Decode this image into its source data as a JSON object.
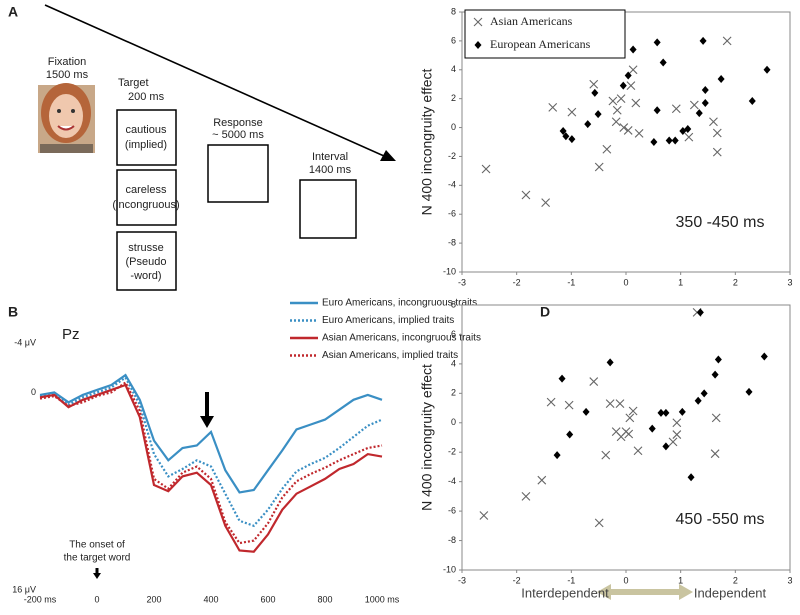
{
  "diagram": {
    "panel": "A",
    "fixation": [
      "Fixation",
      "1500 ms"
    ],
    "target": [
      "Target",
      "200 ms"
    ],
    "target_boxes": [
      [
        "cautious",
        "(implied)"
      ],
      [
        "careless",
        "(incongruous)"
      ],
      [
        "strusse",
        "(Pseudo",
        "-word)"
      ]
    ],
    "response": [
      "Response",
      "~ 5000 ms"
    ],
    "interval": [
      "Interval",
      "1400 ms"
    ]
  },
  "chart_data": [
    {
      "type": "line",
      "panel": "B",
      "title": "Pz",
      "y_inverted": true,
      "annotation_lines": [
        "The onset of",
        "the target word"
      ],
      "x": [
        -200,
        -150,
        -100,
        -50,
        0,
        50,
        100,
        150,
        200,
        250,
        300,
        350,
        400,
        450,
        500,
        550,
        600,
        650,
        700,
        750,
        800,
        850,
        900,
        950,
        1000
      ],
      "xlim": [
        -200,
        1000
      ],
      "xticks": [
        {
          "value": -200,
          "label": "-200 ms"
        },
        0,
        200,
        400,
        600,
        800,
        {
          "value": 1000,
          "label": "1000 ms"
        }
      ],
      "ylim": [
        -4,
        16
      ],
      "yticks": [
        {
          "value": -4,
          "label": "-4 μV"
        },
        0,
        {
          "value": 16,
          "label": "16 μV"
        }
      ],
      "series": [
        {
          "name": "Euro Americans, incongruous traits",
          "color": "#3a8fc4",
          "style": "solid",
          "values": [
            0.2,
            0,
            0.8,
            0.2,
            -0.2,
            -0.6,
            -1.4,
            0.6,
            3.9,
            5.5,
            4.5,
            4.3,
            3.2,
            6.3,
            8.1,
            7.9,
            6.3,
            4.7,
            3,
            2.6,
            2.2,
            1.4,
            0.6,
            0.2,
            0.6
          ]
        },
        {
          "name": "Euro Americans, implied traits",
          "color": "#3a8fc4",
          "style": "dotted",
          "values": [
            0.3,
            0.1,
            1.0,
            0.4,
            0,
            -0.4,
            -1.2,
            1.0,
            5.0,
            6.8,
            6.2,
            5.5,
            6.0,
            8.2,
            10.4,
            10.8,
            9.5,
            7.8,
            6.4,
            5.8,
            5.3,
            4.5,
            3.6,
            2.7,
            2.2
          ]
        },
        {
          "name": "Asian Americans, incongruous traits",
          "color": "#c0282d",
          "style": "solid",
          "values": [
            0.4,
            0.2,
            1.2,
            0.6,
            0.2,
            -0.2,
            -0.6,
            2.0,
            7.5,
            8.0,
            6.8,
            6.5,
            7.5,
            10.8,
            12.8,
            12.9,
            11.5,
            9.5,
            8.2,
            7.6,
            7.0,
            6.2,
            5.8,
            5.0,
            5.2
          ]
        },
        {
          "name": "Asian Americans, implied traits",
          "color": "#c0282d",
          "style": "dotted",
          "values": [
            0.5,
            0.3,
            1.1,
            0.8,
            0.3,
            0,
            -0.8,
            1.5,
            7.0,
            7.8,
            6.5,
            6.0,
            7.0,
            10.5,
            12.2,
            12.0,
            10.6,
            8.5,
            7.2,
            6.6,
            6.1,
            5.5,
            5.0,
            4.5,
            4.3
          ]
        }
      ]
    },
    {
      "type": "scatter",
      "panel": "C",
      "ylabel": "N 400 incongruity effect",
      "annotation": "350 -450 ms",
      "xlim": [
        -3,
        3
      ],
      "xticks": [
        -3,
        -2,
        -1,
        0,
        1,
        2,
        3
      ],
      "ylim": [
        -10,
        8
      ],
      "yticks": [
        -10,
        -8,
        -6,
        -4,
        -2,
        0,
        2,
        4,
        6,
        8
      ],
      "series": [
        {
          "name": "Asian Americans",
          "marker": "x",
          "color": "#666666",
          "x": [
            -2.56,
            -1.83,
            -1.47,
            -1.34,
            -0.99,
            -0.59,
            -0.49,
            -0.35,
            -0.24,
            -0.16,
            -0.09,
            -0.18,
            -0.04,
            0.04,
            0.09,
            0.18,
            0.24,
            0.13,
            1.25,
            1.6,
            1.67,
            1.67,
            1.85,
            0.92,
            1.15
          ],
          "y": [
            -2.87,
            -4.67,
            -5.2,
            1.4,
            1.07,
            3.0,
            -2.73,
            -1.5,
            1.84,
            1.2,
            2.0,
            0.4,
            0,
            -0.2,
            2.9,
            1.7,
            -0.4,
            4.0,
            1.56,
            0.4,
            -0.38,
            -1.7,
            6.0,
            1.3,
            -0.66
          ]
        },
        {
          "name": "European Americans",
          "marker": "diamond",
          "color": "#000000",
          "x": [
            -0.57,
            -0.7,
            -1.15,
            -1.1,
            -0.99,
            -0.51,
            0.13,
            0.04,
            -0.05,
            0.57,
            0.68,
            0.57,
            0.51,
            0.79,
            0.9,
            1.04,
            1.34,
            1.45,
            1.45,
            1.41,
            1.74,
            2.31,
            2.58,
            1.13
          ],
          "y": [
            2.4,
            0.24,
            -0.24,
            -0.6,
            -0.8,
            0.93,
            5.4,
            3.6,
            2.9,
            5.9,
            4.5,
            1.2,
            -1.0,
            -0.9,
            -0.9,
            -0.24,
            1.0,
            1.7,
            2.6,
            6.0,
            3.36,
            1.84,
            4.0,
            -0.1
          ]
        }
      ]
    },
    {
      "type": "scatter",
      "panel": "D",
      "ylabel": "N 400 incongruity effect",
      "annotation": "450 -550 ms",
      "x_label_left": "Interdependent",
      "x_label_right": "Independent",
      "xlim": [
        -3,
        3
      ],
      "xticks": [
        -3,
        -2,
        -1,
        0,
        1,
        2,
        3
      ],
      "ylim": [
        -10,
        8
      ],
      "yticks": [
        -10,
        -8,
        -6,
        -4,
        -2,
        0,
        2,
        4,
        6,
        8
      ],
      "series": [
        {
          "name": "Asian Americans",
          "marker": "x",
          "color": "#666666",
          "x": [
            -2.6,
            -1.83,
            -1.54,
            -1.37,
            -1.04,
            -0.59,
            -0.49,
            -0.37,
            -0.29,
            -0.11,
            -0.18,
            -0.09,
            0,
            0.07,
            0.05,
            0.13,
            0.22,
            0.93,
            0.93,
            0.86,
            1.3,
            1.63,
            1.65
          ],
          "y": [
            -6.3,
            -5.0,
            -3.9,
            1.4,
            1.2,
            2.8,
            -6.8,
            -2.2,
            1.3,
            1.3,
            -0.6,
            -0.95,
            -0.6,
            0.33,
            -0.76,
            0.8,
            -1.9,
            0,
            -0.8,
            -1.3,
            7.5,
            -2.1,
            0.33
          ]
        },
        {
          "name": "European Americans",
          "marker": "diamond",
          "color": "#000000",
          "x": [
            -1.17,
            -0.73,
            -1.03,
            -1.26,
            -0.29,
            0.48,
            0.64,
            0.73,
            0.73,
            1.03,
            1.32,
            1.43,
            1.36,
            1.19,
            1.63,
            1.69,
            2.25,
            2.53
          ],
          "y": [
            3.0,
            0.74,
            -0.8,
            -2.2,
            4.1,
            -0.4,
            0.67,
            0.67,
            -1.6,
            0.74,
            1.5,
            2.0,
            7.5,
            -3.7,
            3.27,
            4.3,
            2.1,
            4.5
          ]
        }
      ]
    }
  ]
}
